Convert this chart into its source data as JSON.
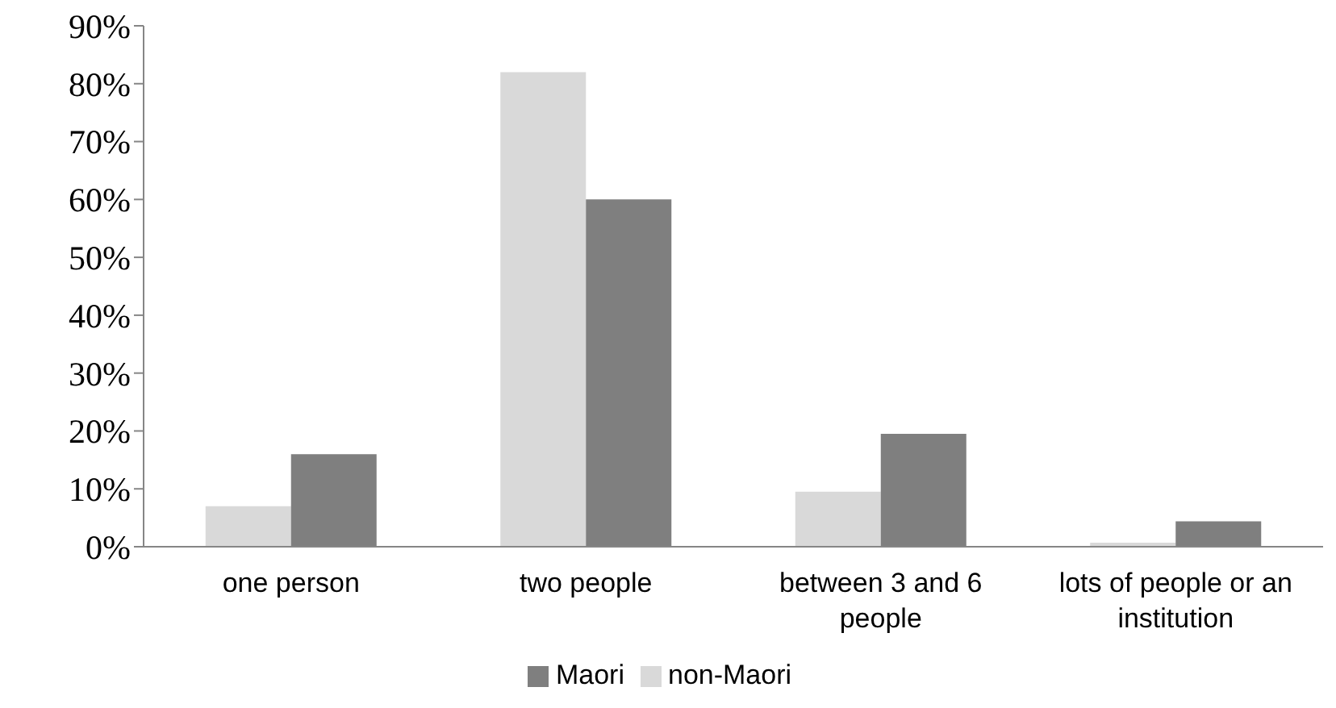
{
  "chart_data": {
    "type": "bar",
    "categories": [
      "one person",
      "two people",
      "between 3 and 6 people",
      "lots of people or an institution"
    ],
    "series": [
      {
        "name": "non-Maori",
        "color": "#d9d9d9",
        "values": [
          7,
          82,
          9.5,
          0.7
        ]
      },
      {
        "name": "Maori",
        "color": "#7f7f7f",
        "values": [
          16,
          60,
          19.5,
          4.4
        ]
      }
    ],
    "ylim": [
      0,
      90
    ],
    "yticks": [
      {
        "value": 0,
        "label": "0%"
      },
      {
        "value": 10,
        "label": "10%"
      },
      {
        "value": 20,
        "label": "20%"
      },
      {
        "value": 30,
        "label": "30%"
      },
      {
        "value": 40,
        "label": "40%"
      },
      {
        "value": 50,
        "label": "50%"
      },
      {
        "value": 60,
        "label": "60%"
      },
      {
        "value": 70,
        "label": "70%"
      },
      {
        "value": 80,
        "label": "80%"
      },
      {
        "value": 90,
        "label": "90%"
      }
    ],
    "grid": false,
    "legend": "bottom"
  }
}
